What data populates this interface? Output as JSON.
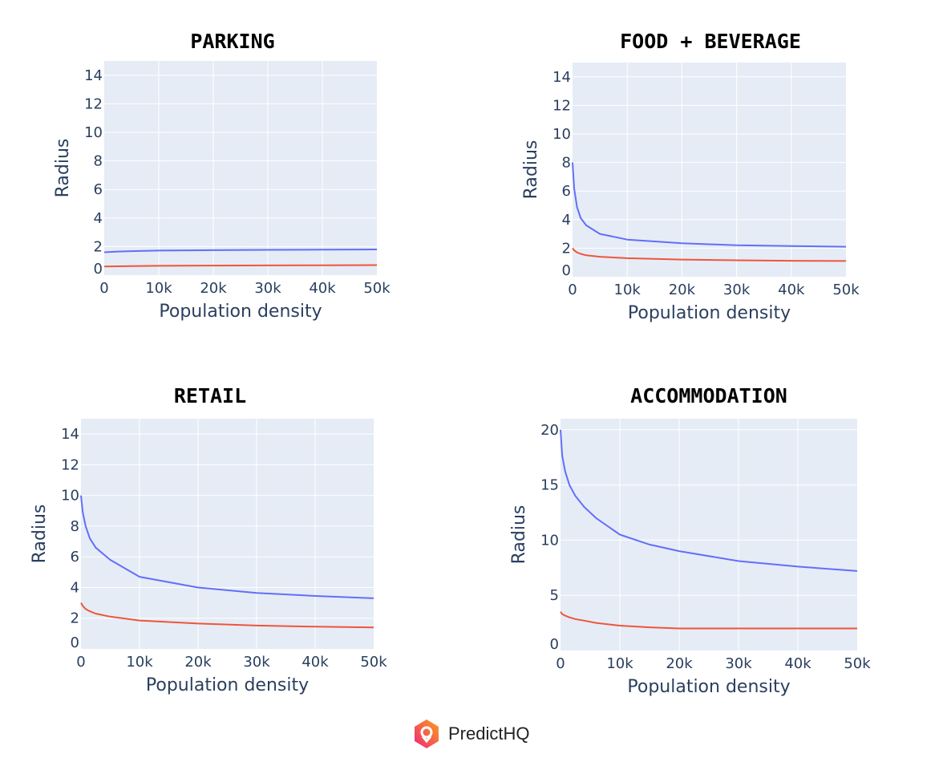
{
  "colors": {
    "upper": "#636efa",
    "lower": "#ef553b",
    "plot_bg": "#e5ecf6",
    "text": "#2a3f5f"
  },
  "brand": {
    "name": "PredictHQ"
  },
  "chart_data": [
    {
      "type": "line",
      "title": "PARKING",
      "xlabel": "Population density",
      "ylabel": "Radius",
      "xlim": [
        0,
        50000
      ],
      "ylim": [
        0,
        15
      ],
      "grid": true,
      "xticks": [
        "0",
        "10k",
        "20k",
        "30k",
        "40k",
        "50k"
      ],
      "yticks": [
        "0",
        "2",
        "4",
        "6",
        "8",
        "10",
        "12",
        "14"
      ],
      "x": [
        0,
        2500,
        5000,
        10000,
        20000,
        30000,
        40000,
        50000
      ],
      "series": [
        {
          "values": [
            1.6,
            1.65,
            1.68,
            1.72,
            1.75,
            1.77,
            1.78,
            1.8
          ]
        },
        {
          "values": [
            0.6,
            0.62,
            0.63,
            0.65,
            0.67,
            0.68,
            0.69,
            0.7
          ]
        }
      ]
    },
    {
      "type": "line",
      "title": "FOOD + BEVERAGE",
      "xlabel": "Population density",
      "ylabel": "Radius",
      "xlim": [
        0,
        50000
      ],
      "ylim": [
        0,
        15
      ],
      "grid": true,
      "xticks": [
        "0",
        "10k",
        "20k",
        "30k",
        "40k",
        "50k"
      ],
      "yticks": [
        "0",
        "2",
        "4",
        "6",
        "8",
        "10",
        "12",
        "14"
      ],
      "x": [
        0,
        300,
        800,
        1500,
        2500,
        5000,
        10000,
        20000,
        30000,
        40000,
        50000
      ],
      "series": [
        {
          "values": [
            8,
            6.2,
            4.9,
            4.1,
            3.6,
            3.0,
            2.6,
            2.35,
            2.2,
            2.15,
            2.1
          ]
        },
        {
          "values": [
            2,
            1.85,
            1.7,
            1.6,
            1.5,
            1.4,
            1.3,
            1.2,
            1.15,
            1.12,
            1.1
          ]
        }
      ]
    },
    {
      "type": "line",
      "title": "RETAIL",
      "xlabel": "Population density",
      "ylabel": "Radius",
      "xlim": [
        0,
        50000
      ],
      "ylim": [
        0,
        15
      ],
      "grid": true,
      "xticks": [
        "0",
        "10k",
        "20k",
        "30k",
        "40k",
        "50k"
      ],
      "yticks": [
        "0",
        "2",
        "4",
        "6",
        "8",
        "10",
        "12",
        "14"
      ],
      "x": [
        0,
        300,
        800,
        1500,
        2500,
        5000,
        10000,
        20000,
        30000,
        40000,
        50000
      ],
      "series": [
        {
          "values": [
            10,
            8.9,
            8.0,
            7.2,
            6.6,
            5.8,
            4.7,
            4.0,
            3.65,
            3.45,
            3.3
          ]
        },
        {
          "values": [
            3,
            2.8,
            2.6,
            2.45,
            2.3,
            2.1,
            1.85,
            1.65,
            1.52,
            1.45,
            1.4
          ]
        }
      ]
    },
    {
      "type": "line",
      "title": "ACCOMMODATION",
      "xlabel": "Population density",
      "ylabel": "Radius",
      "xlim": [
        0,
        50000
      ],
      "ylim": [
        0,
        21
      ],
      "grid": true,
      "xticks": [
        "0",
        "10k",
        "20k",
        "30k",
        "40k",
        "50k"
      ],
      "yticks": [
        "0",
        "5",
        "10",
        "15",
        "20"
      ],
      "x": [
        0,
        300,
        800,
        1500,
        2500,
        4000,
        6000,
        10000,
        15000,
        20000,
        30000,
        40000,
        50000
      ],
      "series": [
        {
          "values": [
            20,
            17.6,
            16.2,
            15,
            14,
            13,
            12,
            10.5,
            9.6,
            9.0,
            8.1,
            7.6,
            7.2
          ]
        },
        {
          "values": [
            3.5,
            3.3,
            3.15,
            3.0,
            2.85,
            2.7,
            2.5,
            2.25,
            2.1,
            2.0,
            2.0,
            2.0,
            2.0
          ]
        }
      ]
    }
  ]
}
